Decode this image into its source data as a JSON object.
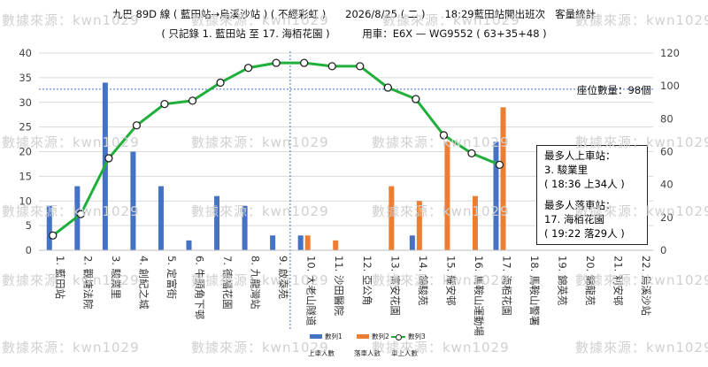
{
  "watermark_text": "數據來源：kwn1029",
  "header": {
    "line1": "九巴 89D 線 ( 藍田站→烏溪沙站 ) ( 不經彩虹 )      2026/8/25 ( 二 )      18:29藍田站開出班次   客量統計",
    "line2": "( 只記錄 1. 藍田站 至 17. 海栢花園 )          用車：E6X — WG9552 ( 63+35+48 )"
  },
  "capacity_label": "座位數量：98個",
  "info_box": {
    "boarding_heading": "最多人上車站：",
    "boarding_stop": "3. 駿業里",
    "boarding_detail": "( 18:36    上34人 )",
    "alighting_heading": "最多人落車站：",
    "alighting_stop": "17. 海栢花園",
    "alighting_detail": "( 19:22    落29人 )"
  },
  "colors": {
    "boarding": "#4472C4",
    "alighting": "#ED7D31",
    "onboard": "#1FAF3A",
    "capacity_line": "#4472C4",
    "grid": "#d9d9d9"
  },
  "chart_data": {
    "type": "bar",
    "categories": [
      "1. 藍田站",
      "2. 觀塘法院",
      "3. 駿業里",
      "4. 創紀之城",
      "5. 定富街",
      "6. 牛頭角下邨",
      "7. 德福花園",
      "8. 九龍灣站",
      "9. 啟泰苑",
      "10. 大老山隧道",
      "11. 沙田醫院",
      "12. 亞公角",
      "13. 富安花園",
      "14. 錦駿苑",
      "15. 耀安邨",
      "16. 馬鞍山運動場",
      "17. 海栢花園",
      "18. 馬鞍山警署",
      "19. 錦英苑",
      "20. 錦龍苑",
      "21. 利安邨",
      "22. 烏溪沙站"
    ],
    "series": [
      {
        "name": "數列1",
        "label": "上車人數",
        "type": "bar",
        "axis": "left",
        "values": [
          9,
          13,
          34,
          20,
          13,
          2,
          11,
          9,
          3,
          3,
          0,
          0,
          0,
          3,
          0,
          0,
          22,
          0,
          0,
          0,
          0,
          0
        ]
      },
      {
        "name": "數列2",
        "label": "落車人數",
        "type": "bar",
        "axis": "left",
        "values": [
          0,
          0,
          0,
          0,
          0,
          0,
          0,
          0,
          0,
          3,
          2,
          0,
          13,
          10,
          22,
          11,
          29,
          0,
          0,
          0,
          0,
          0
        ]
      },
      {
        "name": "數列3",
        "label": "車上人數",
        "type": "line",
        "axis": "right",
        "values": [
          9,
          22,
          56,
          76,
          89,
          91,
          102,
          111,
          114,
          114,
          112,
          112,
          99,
          92,
          70,
          59,
          52,
          null,
          null,
          null,
          null,
          null
        ]
      }
    ],
    "y_left": {
      "range": [
        0,
        40
      ],
      "ticks": [
        0,
        5,
        10,
        15,
        20,
        25,
        30,
        35,
        40
      ]
    },
    "y_right": {
      "range": [
        0,
        120
      ],
      "ticks": [
        0,
        20,
        40,
        60,
        80,
        100,
        120
      ]
    },
    "capacity": 98,
    "grid": true,
    "legend_position": "bottom"
  }
}
